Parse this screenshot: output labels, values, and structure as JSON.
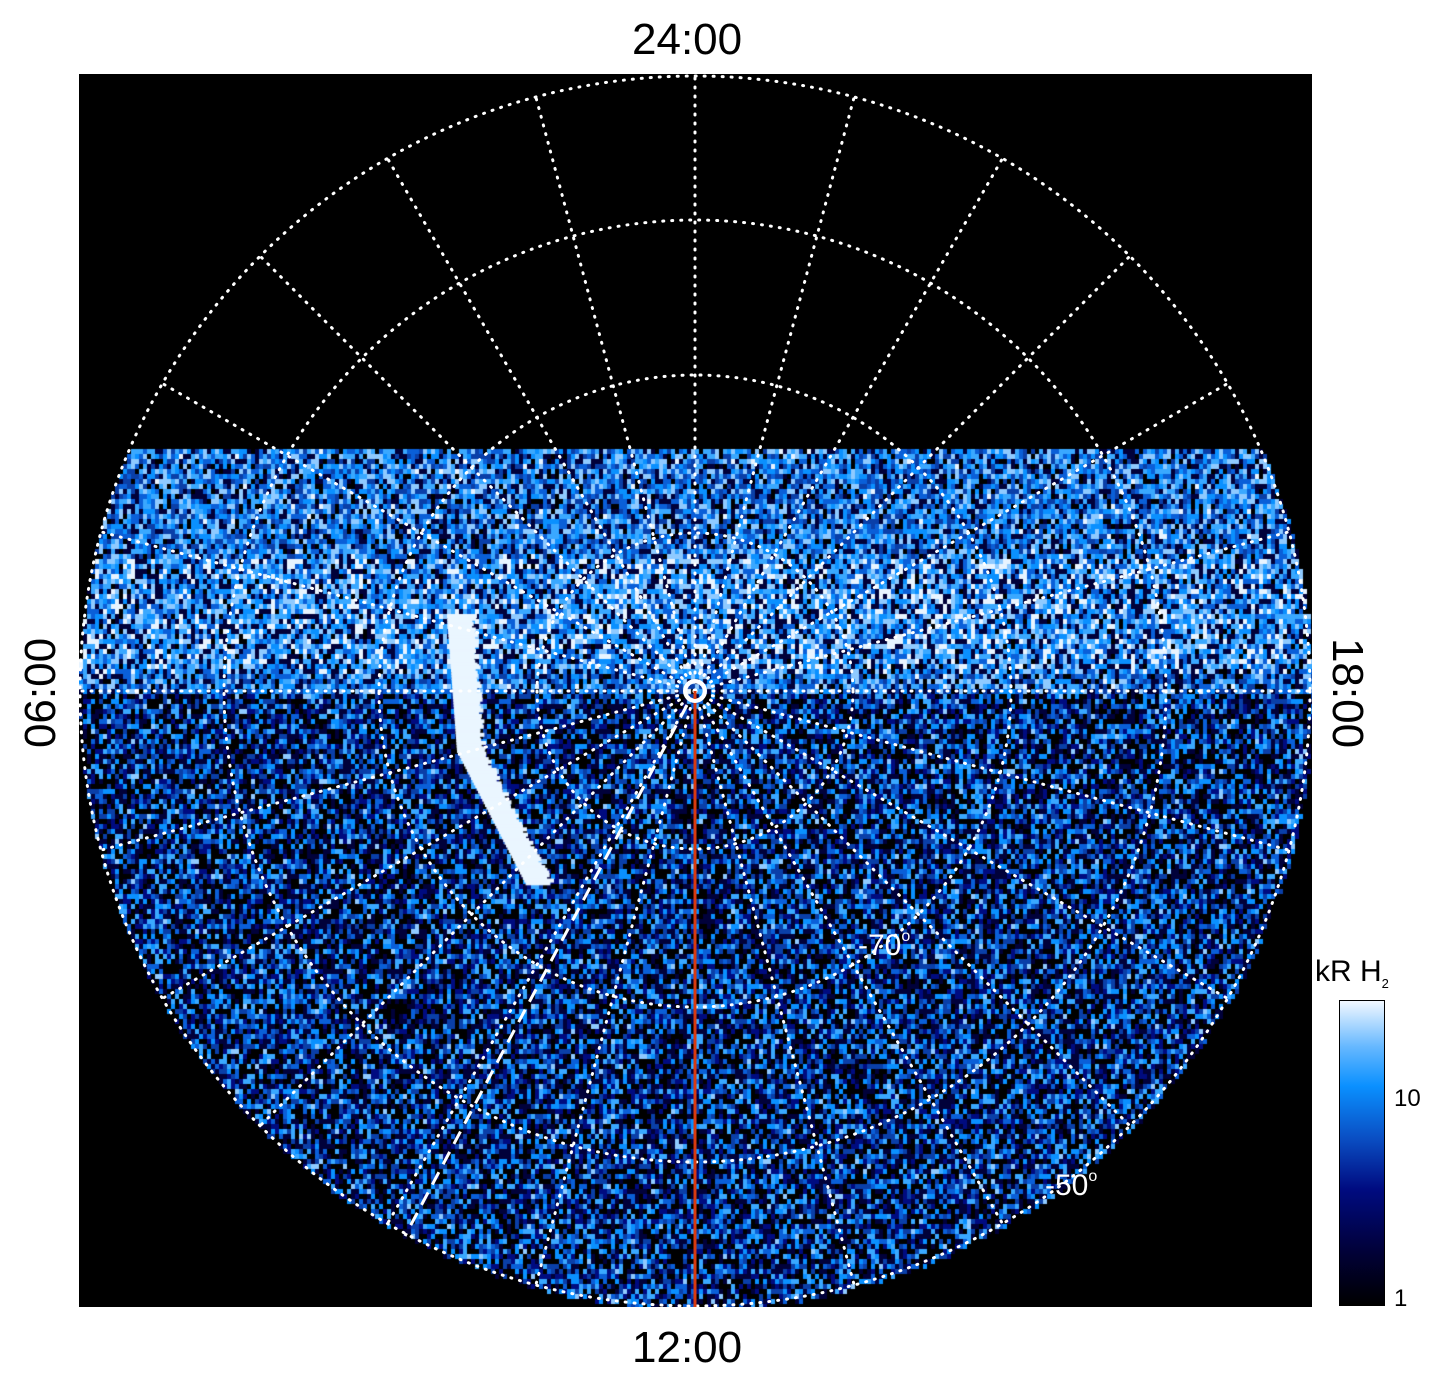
{
  "chart_data": {
    "type": "heatmap",
    "projection": "polar (south pole, local time vs latitude)",
    "local_time_labels": {
      "top": "24:00",
      "bottom": "12:00",
      "left": "06:00",
      "right": "18:00"
    },
    "latitude_labels": [
      "-70°",
      "-50°"
    ],
    "latitude_circles": [
      -80,
      -70,
      -60,
      -50
    ],
    "meridian_step_hours": 1,
    "colorbar": {
      "label": "kR H",
      "label_subscript": "2",
      "scale": "log",
      "ticks": [
        "1",
        "10"
      ],
      "range": [
        1,
        25
      ]
    },
    "colors": {
      "background": "#000000",
      "low": "#000000",
      "mid": "#0a4fc4",
      "high": "#f2f8ff",
      "grid": "#ffffff",
      "noon_line": "#d83a10"
    }
  }
}
